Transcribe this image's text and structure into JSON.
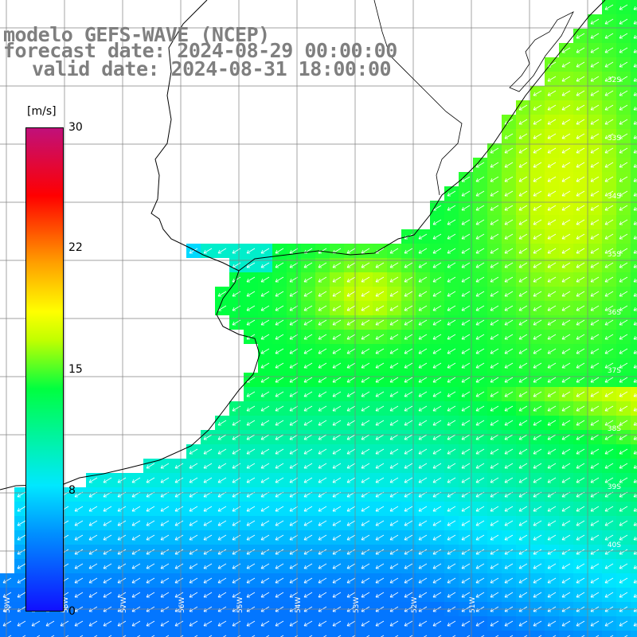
{
  "title": {
    "line1": "modelo GEFS-WAVE (NCEP)",
    "line2": "forecast date: 2024-08-29 00:00:00",
    "line3": "valid date: 2024-08-31 18:00:00"
  },
  "colorbar": {
    "unit": "[m/s]",
    "min": 0,
    "max": 30,
    "ticks": [
      "30",
      "22",
      "15",
      "8",
      "0"
    ],
    "colors": [
      "#1010ff",
      "#0090ff",
      "#00e8ff",
      "#00ff40",
      "#c0ff00",
      "#ffff00",
      "#ffa000",
      "#ff0000",
      "#c0107a"
    ]
  },
  "lat_labels": [
    "32S",
    "33S",
    "34S",
    "35S",
    "36S",
    "37S",
    "38S",
    "39S",
    "40S"
  ],
  "lon_labels": [
    "59W",
    "58W",
    "57W",
    "56W",
    "55W",
    "54W",
    "53W",
    "52W",
    "51W"
  ],
  "wind_direction": "southwest",
  "colors": {
    "land": "#ffffff",
    "coast": "#000000",
    "grid": "#888888",
    "arrow": "#ffffff"
  }
}
